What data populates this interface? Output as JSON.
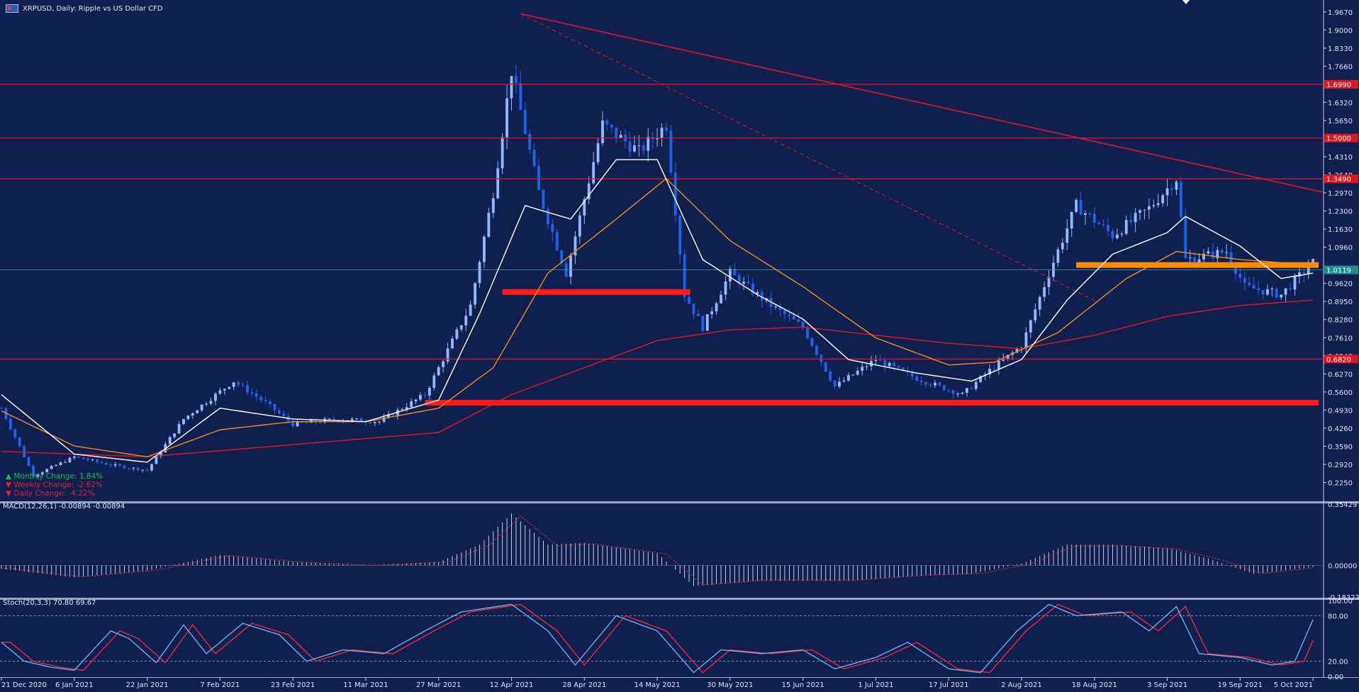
{
  "header": {
    "title": "XRPUSD, Daily:  Ripple vs US Dollar CFD",
    "flag_icon": "currency-flag-icon"
  },
  "stats": {
    "monthly": "Monthly Change:  1.84%",
    "weekly": "Weekly Change:  -2.62%",
    "daily": "Daily Change:  -4.22%"
  },
  "macd_label": "MACD(12,26,1) -0.00894 -0.00894",
  "stoch_label": "Stoch(20,3,3) 70.80 69.67",
  "colors": {
    "bg": "#0f1f4f",
    "up_candle": "#8fb8ff",
    "down_candle": "#1e62e8",
    "ma_fast": "#ffffff",
    "ma_mid": "#f28c18",
    "ma_slow": "#e2161f",
    "level_line": "#e2161f",
    "support_zone": "#ff1a1a",
    "orange_zone": "#ff8a00",
    "price_tag": "#1b8f8f"
  },
  "chart_data": {
    "type": "candlestick",
    "symbol": "XRPUSD",
    "timeframe": "Daily",
    "x_ticks": [
      "21 Dec 2020",
      "6 Jan 2021",
      "22 Jan 2021",
      "7 Feb 2021",
      "23 Feb 2021",
      "11 Mar 2021",
      "27 Mar 2021",
      "12 Apr 2021",
      "28 Apr 2021",
      "14 May 2021",
      "30 May 2021",
      "15 Jun 2021",
      "1 Jul 2021",
      "17 Jul 2021",
      "2 Aug 2021",
      "18 Aug 2021",
      "3 Sep 2021",
      "19 Sep 2021",
      "5 Oct 2021"
    ],
    "price_ticks": [
      "1.9670",
      "1.9000",
      "1.8330",
      "1.7660",
      "1.6320",
      "1.5650",
      "1.4310",
      "1.3640",
      "1.2970",
      "1.2300",
      "1.1630",
      "1.0960",
      "0.9620",
      "0.8950",
      "0.8280",
      "0.7610",
      "0.6940",
      "0.6270",
      "0.5600",
      "0.4930",
      "0.4260",
      "0.3590",
      "0.2920",
      "0.2250"
    ],
    "price_range": [
      0.158,
      1.99
    ],
    "current_price": "1.0119",
    "horizontal_levels": [
      {
        "price": "1.6990",
        "value": 1.699
      },
      {
        "price": "1.5000",
        "value": 1.5
      },
      {
        "price": "1.3490",
        "value": 1.349
      },
      {
        "price": "0.6820",
        "value": 0.682
      }
    ],
    "support_zones": [
      {
        "from": "10 Apr 2021",
        "to": "20 May 2021",
        "value": 0.93,
        "color": "red"
      },
      {
        "from": "24 Mar 2021",
        "to": "5 Oct 2021",
        "value": 0.52,
        "color": "red"
      },
      {
        "from": "14 Aug 2021",
        "to": "5 Oct 2021",
        "value": 1.03,
        "color": "orange"
      }
    ],
    "trendlines": [
      {
        "from_date": "14 Apr 2021",
        "from_value": 1.96,
        "to_date": "7 Oct 2021",
        "to_value": 1.3,
        "style": "solid"
      },
      {
        "from_date": "14 Apr 2021",
        "from_value": 1.96,
        "to_date": "19 Aug 2021",
        "to_value": 0.89,
        "style": "dashed"
      }
    ],
    "price_path": [
      [
        "21 Dec 2020",
        0.5
      ],
      [
        "28 Dec 2020",
        0.25
      ],
      [
        "6 Jan 2021",
        0.32
      ],
      [
        "14 Jan 2021",
        0.29
      ],
      [
        "22 Jan 2021",
        0.27
      ],
      [
        "30 Jan 2021",
        0.46
      ],
      [
        "10 Feb 2021",
        0.6
      ],
      [
        "17 Feb 2021",
        0.52
      ],
      [
        "23 Feb 2021",
        0.44
      ],
      [
        "5 Mar 2021",
        0.46
      ],
      [
        "14 Mar 2021",
        0.45
      ],
      [
        "24 Mar 2021",
        0.55
      ],
      [
        "3 Apr 2021",
        0.88
      ],
      [
        "8 Apr 2021",
        1.3
      ],
      [
        "12 Apr 2021",
        1.75
      ],
      [
        "18 Apr 2021",
        1.3
      ],
      [
        "24 Apr 2021",
        1.0
      ],
      [
        "2 May 2021",
        1.55
      ],
      [
        "10 May 2021",
        1.45
      ],
      [
        "16 May 2021",
        1.55
      ],
      [
        "20 May 2021",
        0.92
      ],
      [
        "24 May 2021",
        0.8
      ],
      [
        "30 May 2021",
        1.0
      ],
      [
        "8 Jun 2021",
        0.88
      ],
      [
        "15 Jun 2021",
        0.8
      ],
      [
        "22 Jun 2021",
        0.58
      ],
      [
        "1 Jul 2021",
        0.68
      ],
      [
        "10 Jul 2021",
        0.61
      ],
      [
        "20 Jul 2021",
        0.55
      ],
      [
        "26 Jul 2021",
        0.64
      ],
      [
        "2 Aug 2021",
        0.73
      ],
      [
        "8 Aug 2021",
        1.0
      ],
      [
        "14 Aug 2021",
        1.25
      ],
      [
        "22 Aug 2021",
        1.14
      ],
      [
        "30 Aug 2021",
        1.24
      ],
      [
        "5 Sep 2021",
        1.35
      ],
      [
        "7 Sep 2021",
        1.05
      ],
      [
        "16 Sep 2021",
        1.08
      ],
      [
        "20 Sep 2021",
        0.95
      ],
      [
        "28 Sep 2021",
        0.92
      ],
      [
        "5 Oct 2021",
        1.04
      ]
    ],
    "ma_fast_path": [
      [
        "21 Dec 2020",
        0.55
      ],
      [
        "6 Jan 2021",
        0.33
      ],
      [
        "22 Jan 2021",
        0.3
      ],
      [
        "7 Feb 2021",
        0.5
      ],
      [
        "23 Feb 2021",
        0.46
      ],
      [
        "11 Mar 2021",
        0.45
      ],
      [
        "27 Mar 2021",
        0.53
      ],
      [
        "5 Apr 2021",
        0.85
      ],
      [
        "15 Apr 2021",
        1.25
      ],
      [
        "25 Apr 2021",
        1.2
      ],
      [
        "5 May 2021",
        1.42
      ],
      [
        "14 May 2021",
        1.42
      ],
      [
        "24 May 2021",
        1.05
      ],
      [
        "5 Jun 2021",
        0.92
      ],
      [
        "15 Jun 2021",
        0.83
      ],
      [
        "25 Jun 2021",
        0.68
      ],
      [
        "10 Jul 2021",
        0.63
      ],
      [
        "22 Jul 2021",
        0.6
      ],
      [
        "2 Aug 2021",
        0.68
      ],
      [
        "12 Aug 2021",
        0.9
      ],
      [
        "22 Aug 2021",
        1.07
      ],
      [
        "3 Sep 2021",
        1.15
      ],
      [
        "7 Sep 2021",
        1.21
      ],
      [
        "19 Sep 2021",
        1.1
      ],
      [
        "28 Sep 2021",
        0.98
      ],
      [
        "5 Oct 2021",
        1.0
      ]
    ],
    "ma_mid_path": [
      [
        "21 Dec 2020",
        0.49
      ],
      [
        "6 Jan 2021",
        0.36
      ],
      [
        "22 Jan 2021",
        0.32
      ],
      [
        "7 Feb 2021",
        0.42
      ],
      [
        "23 Feb 2021",
        0.45
      ],
      [
        "11 Mar 2021",
        0.45
      ],
      [
        "27 Mar 2021",
        0.5
      ],
      [
        "8 Apr 2021",
        0.65
      ],
      [
        "20 Apr 2021",
        1.0
      ],
      [
        "5 May 2021",
        1.2
      ],
      [
        "16 May 2021",
        1.35
      ],
      [
        "30 May 2021",
        1.12
      ],
      [
        "15 Jun 2021",
        0.95
      ],
      [
        "1 Jul 2021",
        0.76
      ],
      [
        "17 Jul 2021",
        0.66
      ],
      [
        "27 Jul 2021",
        0.67
      ],
      [
        "10 Aug 2021",
        0.78
      ],
      [
        "25 Aug 2021",
        0.98
      ],
      [
        "5 Sep 2021",
        1.08
      ],
      [
        "19 Sep 2021",
        1.05
      ],
      [
        "5 Oct 2021",
        1.03
      ]
    ],
    "ma_slow_path": [
      [
        "21 Dec 2020",
        0.34
      ],
      [
        "22 Jan 2021",
        0.32
      ],
      [
        "27 Mar 2021",
        0.41
      ],
      [
        "12 Apr 2021",
        0.55
      ],
      [
        "28 Apr 2021",
        0.65
      ],
      [
        "14 May 2021",
        0.75
      ],
      [
        "30 May 2021",
        0.79
      ],
      [
        "15 Jun 2021",
        0.8
      ],
      [
        "1 Jul 2021",
        0.77
      ],
      [
        "17 Jul 2021",
        0.74
      ],
      [
        "2 Aug 2021",
        0.72
      ],
      [
        "18 Aug 2021",
        0.77
      ],
      [
        "3 Sep 2021",
        0.84
      ],
      [
        "19 Sep 2021",
        0.88
      ],
      [
        "5 Oct 2021",
        0.9
      ]
    ],
    "macd": {
      "ticks": [
        "0.35429",
        "0.00000",
        "-0.18323"
      ],
      "range": [
        -0.18323,
        0.35429
      ],
      "path": [
        [
          "21 Dec 2020",
          -0.02
        ],
        [
          "6 Jan 2021",
          -0.07
        ],
        [
          "22 Jan 2021",
          -0.03
        ],
        [
          "7 Feb 2021",
          0.06
        ],
        [
          "23 Feb 2021",
          0.02
        ],
        [
          "11 Mar 2021",
          0.0
        ],
        [
          "27 Mar 2021",
          0.02
        ],
        [
          "5 Apr 2021",
          0.12
        ],
        [
          "12 Apr 2021",
          0.3
        ],
        [
          "20 Apr 2021",
          0.12
        ],
        [
          "28 Apr 2021",
          0.13
        ],
        [
          "14 May 2021",
          0.07
        ],
        [
          "22 May 2021",
          -0.12
        ],
        [
          "5 Jun 2021",
          -0.09
        ],
        [
          "15 Jun 2021",
          -0.09
        ],
        [
          "25 Jun 2021",
          -0.09
        ],
        [
          "10 Jul 2021",
          -0.06
        ],
        [
          "22 Jul 2021",
          -0.05
        ],
        [
          "2 Aug 2021",
          0.01
        ],
        [
          "12 Aug 2021",
          0.12
        ],
        [
          "22 Aug 2021",
          0.12
        ],
        [
          "3 Sep 2021",
          0.1
        ],
        [
          "12 Sep 2021",
          0.04
        ],
        [
          "22 Sep 2021",
          -0.05
        ],
        [
          "5 Oct 2021",
          -0.01
        ]
      ]
    },
    "stochastic": {
      "ticks": [
        "100.00",
        "80.00",
        "20.00",
        "0.00"
      ],
      "range": [
        0,
        100
      ],
      "levels": [
        80,
        20
      ],
      "path": [
        [
          "21 Dec 2020",
          45
        ],
        [
          "26 Dec 2020",
          20
        ],
        [
          "1 Jan 2021",
          12
        ],
        [
          "6 Jan 2021",
          8
        ],
        [
          "14 Jan 2021",
          60
        ],
        [
          "18 Jan 2021",
          50
        ],
        [
          "24 Jan 2021",
          18
        ],
        [
          "30 Jan 2021",
          68
        ],
        [
          "4 Feb 2021",
          30
        ],
        [
          "12 Feb 2021",
          70
        ],
        [
          "20 Feb 2021",
          55
        ],
        [
          "26 Feb 2021",
          20
        ],
        [
          "6 Mar 2021",
          35
        ],
        [
          "15 Mar 2021",
          30
        ],
        [
          "24 Mar 2021",
          60
        ],
        [
          "1 Apr 2021",
          85
        ],
        [
          "12 Apr 2021",
          95
        ],
        [
          "20 Apr 2021",
          60
        ],
        [
          "26 Apr 2021",
          15
        ],
        [
          "5 May 2021",
          80
        ],
        [
          "14 May 2021",
          60
        ],
        [
          "22 May 2021",
          5
        ],
        [
          "28 May 2021",
          35
        ],
        [
          "6 Jun 2021",
          30
        ],
        [
          "15 Jun 2021",
          35
        ],
        [
          "22 Jun 2021",
          10
        ],
        [
          "1 Jul 2021",
          25
        ],
        [
          "8 Jul 2021",
          45
        ],
        [
          "17 Jul 2021",
          10
        ],
        [
          "24 Jul 2021",
          5
        ],
        [
          "1 Aug 2021",
          60
        ],
        [
          "8 Aug 2021",
          95
        ],
        [
          "14 Aug 2021",
          80
        ],
        [
          "24 Aug 2021",
          85
        ],
        [
          "30 Aug 2021",
          60
        ],
        [
          "5 Sep 2021",
          92
        ],
        [
          "10 Sep 2021",
          30
        ],
        [
          "19 Sep 2021",
          25
        ],
        [
          "26 Sep 2021",
          15
        ],
        [
          "1 Oct 2021",
          20
        ],
        [
          "5 Oct 2021",
          75
        ]
      ]
    }
  }
}
